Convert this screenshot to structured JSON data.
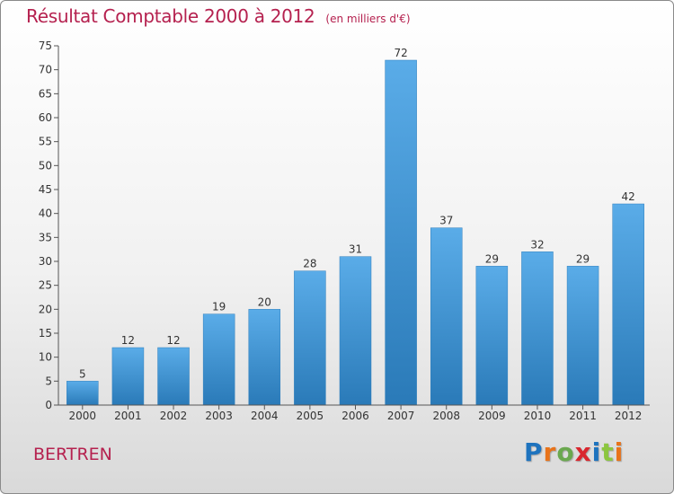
{
  "title": "Résultat Comptable 2000 à 2012",
  "unit_note": "(en milliers d'€)",
  "commune": "BERTREN",
  "logo": {
    "letters": [
      "P",
      "r",
      "o",
      "x",
      "i",
      "t",
      "i"
    ],
    "colors": [
      "#1e73be",
      "#e8731a",
      "#6aa84f",
      "#d9262e",
      "#1e73be",
      "#8cc63f",
      "#e8731a"
    ]
  },
  "chart_data": {
    "type": "bar",
    "categories": [
      "2000",
      "2001",
      "2002",
      "2003",
      "2004",
      "2005",
      "2006",
      "2007",
      "2008",
      "2009",
      "2010",
      "2011",
      "2012"
    ],
    "values": [
      5,
      12,
      12,
      19,
      20,
      28,
      31,
      72,
      37,
      29,
      32,
      29,
      42
    ],
    "title": "Résultat Comptable 2000 à 2012",
    "ylim": [
      0,
      75
    ],
    "yticks": [
      0,
      5,
      10,
      15,
      20,
      25,
      30,
      35,
      40,
      45,
      50,
      55,
      60,
      65,
      70,
      75
    ],
    "grid": false,
    "bar_color_top": "#5aace8",
    "bar_color_bottom": "#2a7ab8",
    "axis_color": "#555555"
  }
}
